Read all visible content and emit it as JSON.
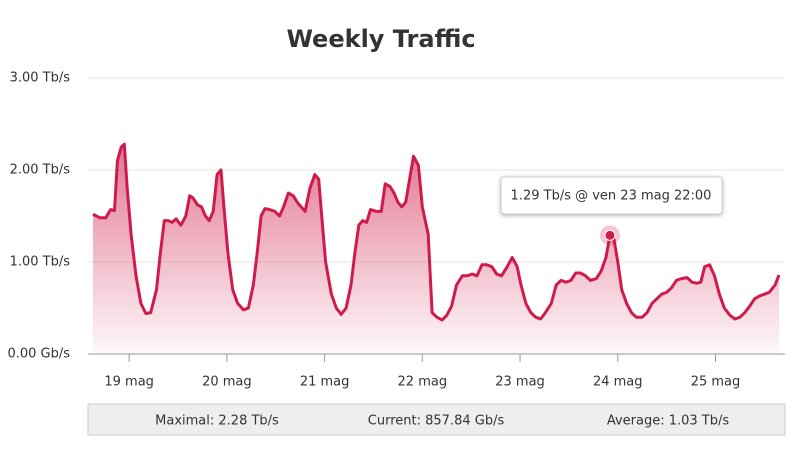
{
  "chart_data": {
    "type": "area",
    "title": "Weekly Traffic",
    "x": [
      18.63,
      18.7,
      18.76,
      18.81,
      18.85,
      18.88,
      18.92,
      18.95,
      18.98,
      19.02,
      19.07,
      19.12,
      19.17,
      19.22,
      19.28,
      19.32,
      19.36,
      19.4,
      19.44,
      19.48,
      19.53,
      19.58,
      19.62,
      19.65,
      19.7,
      19.74,
      19.78,
      19.82,
      19.86,
      19.9,
      19.94,
      19.97,
      20.01,
      20.06,
      20.11,
      20.17,
      20.22,
      20.27,
      20.31,
      20.35,
      20.39,
      20.44,
      20.49,
      20.54,
      20.58,
      20.63,
      20.68,
      20.72,
      20.76,
      20.8,
      20.85,
      20.9,
      20.94,
      20.97,
      21.01,
      21.07,
      21.12,
      21.17,
      21.22,
      21.27,
      21.31,
      21.35,
      21.39,
      21.43,
      21.47,
      21.53,
      21.58,
      21.62,
      21.67,
      21.71,
      21.75,
      21.79,
      21.83,
      21.87,
      21.91,
      21.96,
      22.0,
      22.06,
      22.1,
      22.15,
      22.2,
      22.25,
      22.3,
      22.35,
      22.41,
      22.46,
      22.51,
      22.56,
      22.61,
      22.66,
      22.71,
      22.76,
      22.81,
      22.87,
      22.92,
      22.97,
      23.01,
      23.06,
      23.11,
      23.16,
      23.21,
      23.26,
      23.32,
      23.37,
      23.42,
      23.47,
      23.52,
      23.57,
      23.62,
      23.67,
      23.72,
      23.78,
      23.83,
      23.88,
      23.92,
      23.96,
      24.0,
      24.04,
      24.09,
      24.14,
      24.19,
      24.25,
      24.3,
      24.35,
      24.4,
      24.45,
      24.5,
      24.55,
      24.6,
      24.65,
      24.71,
      24.76,
      24.81,
      24.85,
      24.89,
      24.94,
      24.99,
      25.04,
      25.09,
      25.15,
      25.2,
      25.25,
      25.3,
      25.35,
      25.4,
      25.45,
      25.5,
      25.55,
      25.61,
      25.65
    ],
    "series": [
      {
        "color": "#cf1b4b",
        "values": [
          1.52,
          1.48,
          1.48,
          1.57,
          1.56,
          2.1,
          2.25,
          2.28,
          1.8,
          1.3,
          0.85,
          0.55,
          0.44,
          0.45,
          0.7,
          1.1,
          1.45,
          1.45,
          1.43,
          1.47,
          1.4,
          1.5,
          1.72,
          1.7,
          1.62,
          1.6,
          1.5,
          1.45,
          1.55,
          1.95,
          2.0,
          1.6,
          1.1,
          0.7,
          0.55,
          0.48,
          0.5,
          0.75,
          1.1,
          1.5,
          1.58,
          1.57,
          1.55,
          1.5,
          1.6,
          1.75,
          1.72,
          1.65,
          1.6,
          1.55,
          1.8,
          1.95,
          1.9,
          1.5,
          1.0,
          0.65,
          0.5,
          0.43,
          0.5,
          0.75,
          1.1,
          1.4,
          1.45,
          1.43,
          1.57,
          1.55,
          1.55,
          1.85,
          1.82,
          1.75,
          1.65,
          1.6,
          1.65,
          1.9,
          2.15,
          2.05,
          1.6,
          1.3,
          0.45,
          0.4,
          0.37,
          0.42,
          0.52,
          0.75,
          0.85,
          0.85,
          0.87,
          0.85,
          0.97,
          0.97,
          0.95,
          0.87,
          0.85,
          0.95,
          1.05,
          0.95,
          0.75,
          0.55,
          0.45,
          0.4,
          0.38,
          0.45,
          0.55,
          0.75,
          0.8,
          0.78,
          0.8,
          0.88,
          0.88,
          0.85,
          0.8,
          0.82,
          0.9,
          1.05,
          1.29,
          1.25,
          1.0,
          0.7,
          0.55,
          0.45,
          0.4,
          0.4,
          0.45,
          0.55,
          0.6,
          0.65,
          0.67,
          0.72,
          0.8,
          0.82,
          0.83,
          0.78,
          0.77,
          0.78,
          0.95,
          0.97,
          0.85,
          0.65,
          0.5,
          0.42,
          0.38,
          0.4,
          0.45,
          0.52,
          0.6,
          0.63,
          0.65,
          0.67,
          0.75,
          0.86
        ]
      }
    ],
    "xlim": [
      18.63,
      25.65
    ],
    "xticks": [
      {
        "value": 19,
        "label": "19 mag"
      },
      {
        "value": 20,
        "label": "20 mag"
      },
      {
        "value": 21,
        "label": "21 mag"
      },
      {
        "value": 22,
        "label": "22 mag"
      },
      {
        "value": 23,
        "label": "23 mag"
      },
      {
        "value": 24,
        "label": "24 mag"
      },
      {
        "value": 25,
        "label": "25 mag"
      }
    ],
    "ylim": [
      0,
      3
    ],
    "yticks": [
      {
        "value": 0,
        "label": "0.00 Gb/s"
      },
      {
        "value": 1,
        "label": "1.00 Tb/s"
      },
      {
        "value": 2,
        "label": "2.00 Tb/s"
      },
      {
        "value": 3,
        "label": "3.00 Tb/s"
      }
    ],
    "grid": true,
    "tooltip": {
      "text": "1.29 Tb/s @ ven 23 mag 22:00",
      "x": 23.92
    },
    "stats": [
      "Maximal: 2.28 Tb/s",
      "Current: 857.84 Gb/s",
      "Average: 1.03 Tb/s"
    ]
  }
}
